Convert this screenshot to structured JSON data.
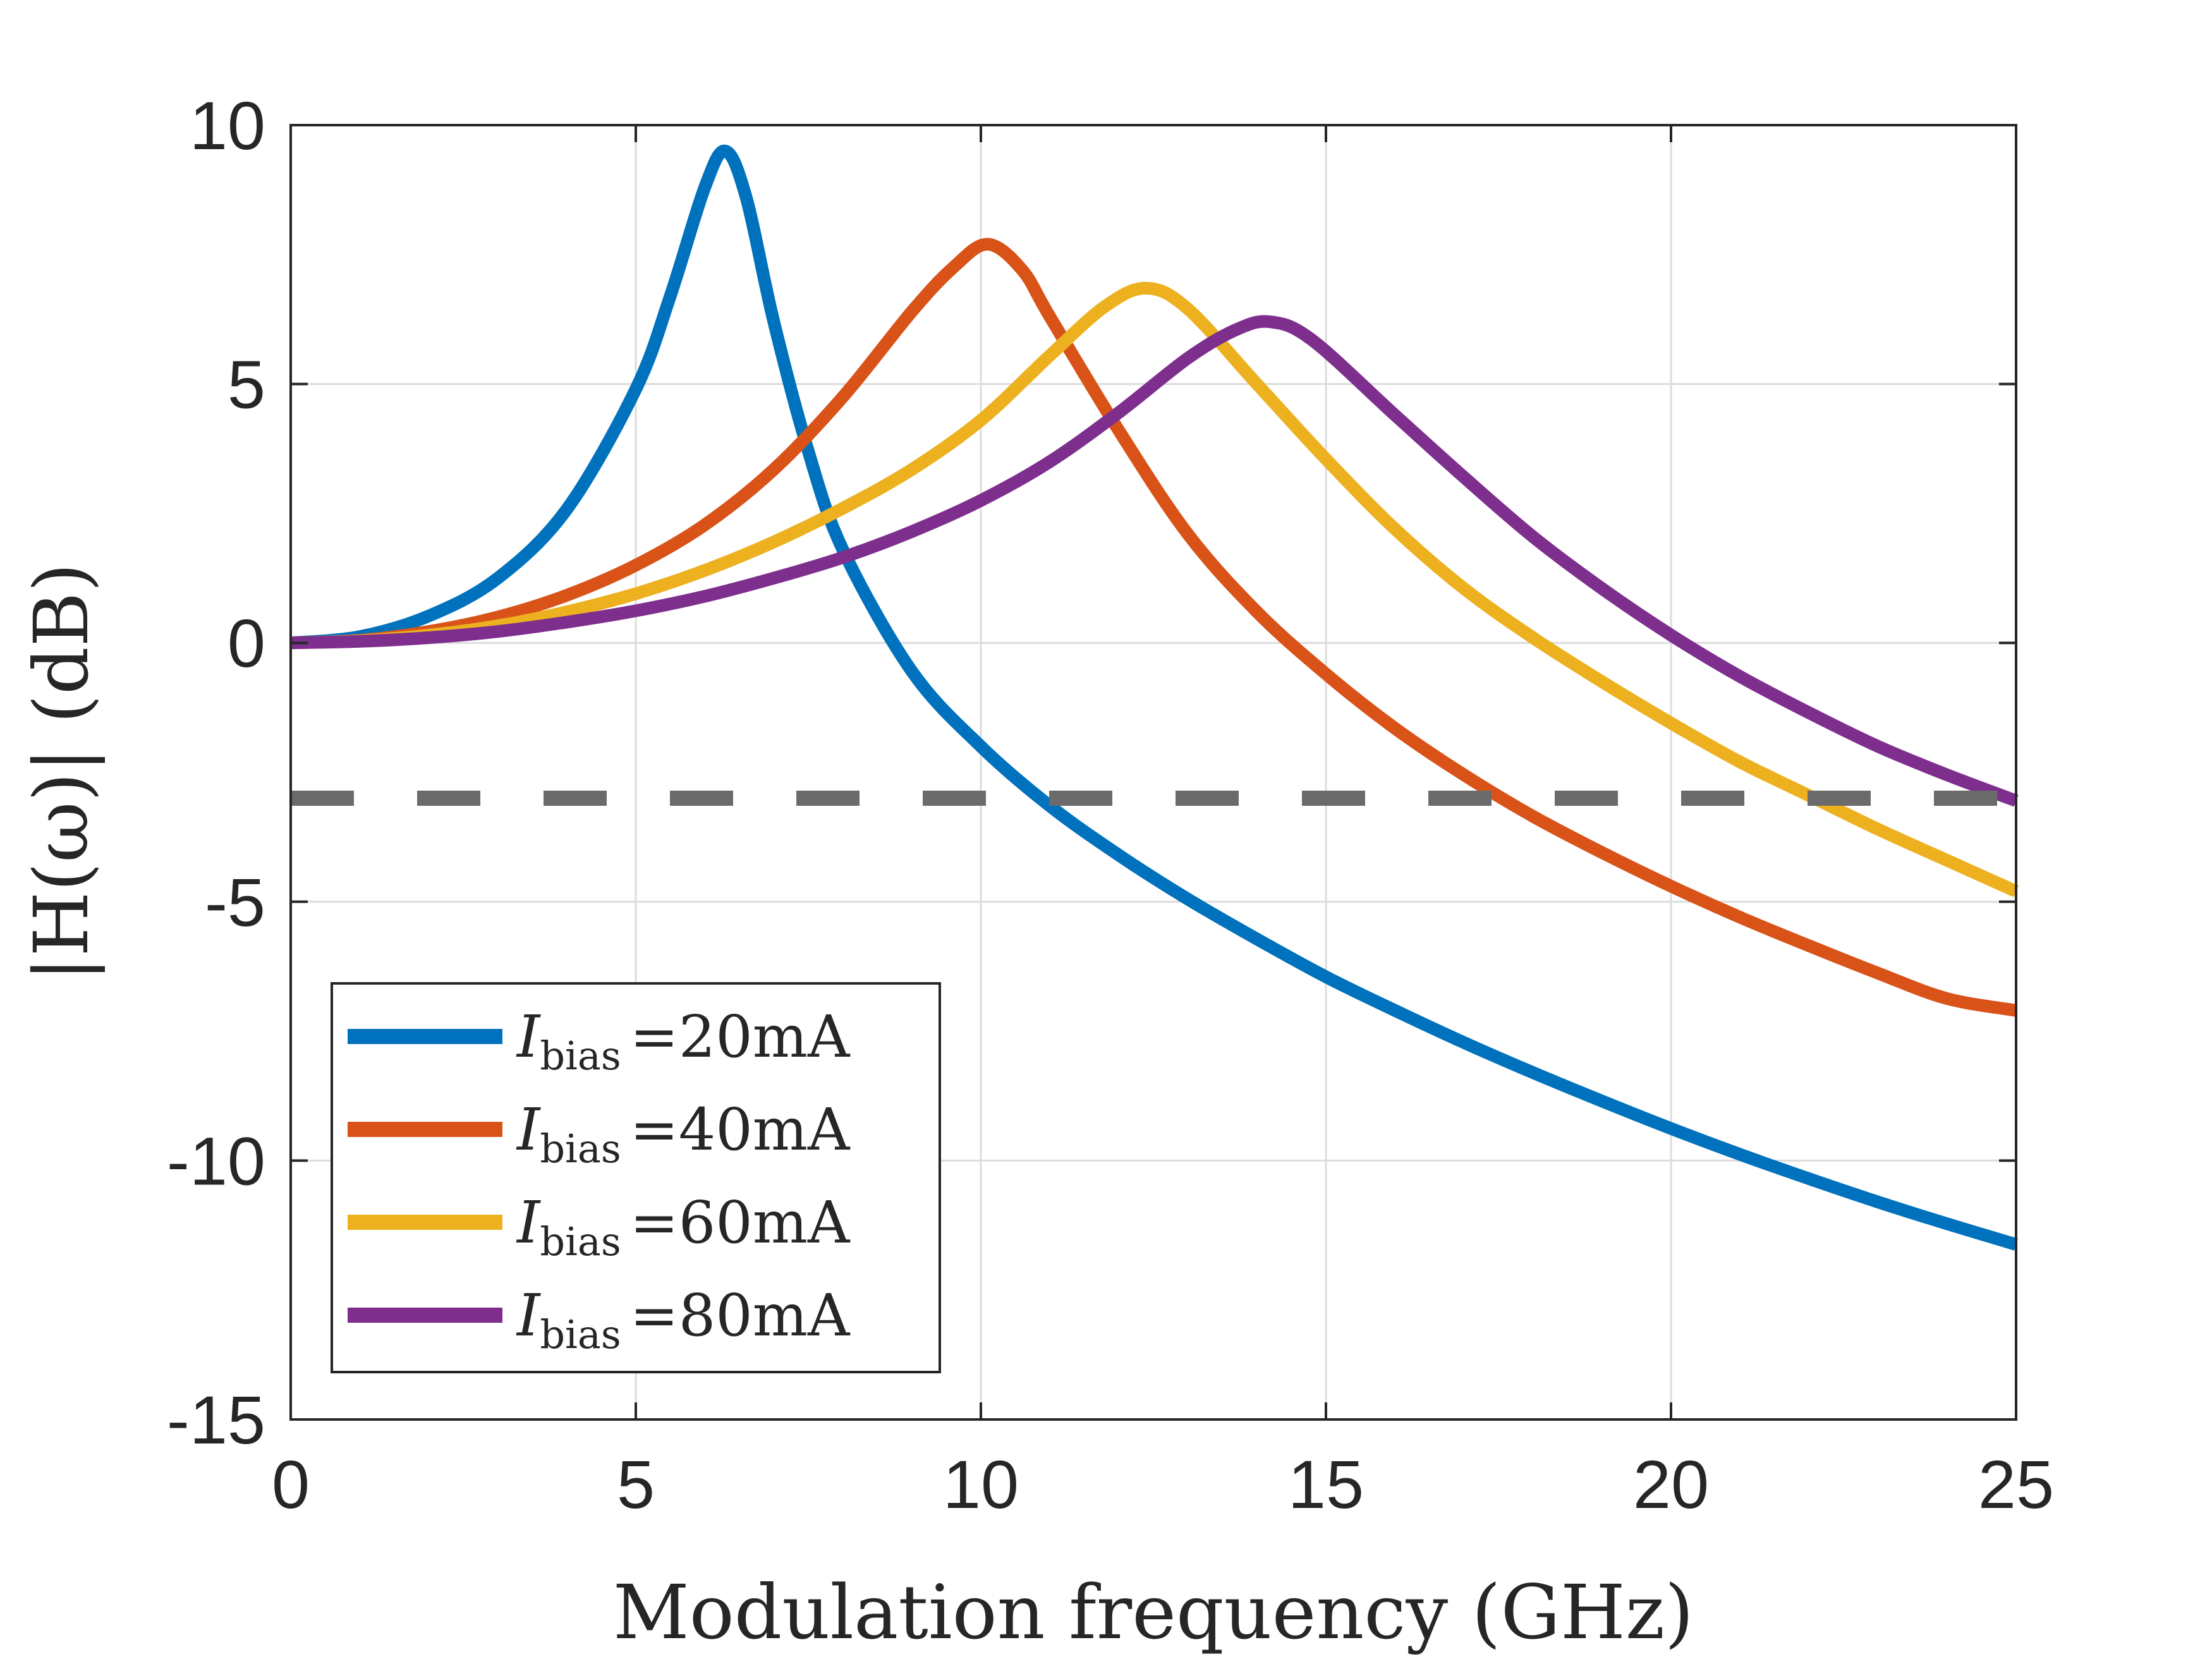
{
  "chart_data": {
    "type": "line",
    "title": "",
    "xlabel": "Modulation frequency (GHz)",
    "ylabel": "|H(ω)| (dB)",
    "xlim": [
      0,
      25
    ],
    "ylim": [
      -15,
      10
    ],
    "xticks": [
      0,
      5,
      10,
      15,
      20,
      25
    ],
    "yticks": [
      -15,
      -10,
      -5,
      0,
      5,
      10
    ],
    "xtick_labels": [
      "0",
      "5",
      "10",
      "15",
      "20",
      "25"
    ],
    "ytick_labels": [
      "-15",
      "-10",
      "-5",
      "0",
      "5",
      "10"
    ],
    "grid": true,
    "legend_position": "bottom-left",
    "reference_line": {
      "y": -3,
      "style": "dashed",
      "color": "#6b6b6b"
    },
    "series": [
      {
        "name": "I_bias =20mA",
        "legend_symbol": "I",
        "legend_subscript": "bias",
        "legend_value": "=20mA",
        "color": "#0072BD",
        "peak_frequency": 6.3,
        "peak_value": 9.5,
        "x": [
          0,
          1,
          2,
          3,
          4,
          5,
          5.5,
          6.0,
          6.3,
          6.6,
          7.0,
          7.5,
          8,
          9,
          10,
          11,
          12,
          13,
          14,
          15,
          16,
          17,
          18,
          19,
          20,
          21,
          22,
          23,
          24,
          25
        ],
        "values": [
          0,
          0.12,
          0.52,
          1.25,
          2.58,
          4.9,
          6.7,
          8.8,
          9.5,
          8.6,
          6.2,
          3.7,
          1.8,
          -0.55,
          -2.0,
          -3.15,
          -4.1,
          -4.95,
          -5.72,
          -6.45,
          -7.1,
          -7.72,
          -8.3,
          -8.85,
          -9.38,
          -9.88,
          -10.35,
          -10.8,
          -11.22,
          -11.62
        ]
      },
      {
        "name": "I_bias =40mA",
        "legend_symbol": "I",
        "legend_subscript": "bias",
        "legend_value": "=40mA",
        "color": "#D95319",
        "peak_frequency": 10.1,
        "peak_value": 7.7,
        "x": [
          0,
          1,
          2,
          3,
          4,
          5,
          6,
          7,
          8,
          9,
          9.6,
          10.1,
          10.6,
          11,
          12,
          13,
          14,
          15,
          16,
          17,
          18,
          19,
          20,
          21,
          22,
          23,
          24,
          25
        ],
        "values": [
          0,
          0.05,
          0.22,
          0.5,
          0.92,
          1.5,
          2.28,
          3.35,
          4.75,
          6.4,
          7.25,
          7.7,
          7.2,
          6.3,
          4.1,
          2.1,
          0.6,
          -0.6,
          -1.65,
          -2.55,
          -3.35,
          -4.05,
          -4.7,
          -5.3,
          -5.85,
          -6.38,
          -6.87,
          -7.1
        ]
      },
      {
        "name": "I_bias =60mA",
        "legend_symbol": "I",
        "legend_subscript": "bias",
        "legend_value": "=60mA",
        "color": "#EDB120",
        "peak_frequency": 12.4,
        "peak_value": 6.85,
        "x": [
          0,
          1,
          2,
          3,
          4,
          5,
          6,
          7,
          8,
          9,
          10,
          11,
          11.8,
          12.4,
          13,
          14,
          15,
          16,
          17,
          18,
          19,
          20,
          21,
          22,
          23,
          24,
          25
        ],
        "values": [
          0,
          0.04,
          0.15,
          0.33,
          0.6,
          0.95,
          1.4,
          1.95,
          2.6,
          3.35,
          4.3,
          5.55,
          6.5,
          6.85,
          6.45,
          5.0,
          3.55,
          2.2,
          1.05,
          0.1,
          -0.75,
          -1.55,
          -2.3,
          -2.95,
          -3.6,
          -4.2,
          -4.8
        ]
      },
      {
        "name": "I_bias =80mA",
        "legend_symbol": "I",
        "legend_subscript": "bias",
        "legend_value": "=80mA",
        "color": "#7E2F8E",
        "peak_frequency": 14.2,
        "peak_value": 6.2,
        "x": [
          0,
          1,
          2,
          3,
          4,
          5,
          6,
          7,
          8,
          9,
          10,
          11,
          12,
          13,
          13.7,
          14.2,
          14.8,
          16,
          17,
          18,
          19,
          20,
          21,
          22,
          23,
          24,
          25
        ],
        "values": [
          0,
          0.03,
          0.1,
          0.22,
          0.4,
          0.62,
          0.9,
          1.25,
          1.65,
          2.15,
          2.75,
          3.5,
          4.45,
          5.5,
          6.05,
          6.2,
          5.85,
          4.4,
          3.2,
          2.05,
          1.05,
          0.15,
          -0.65,
          -1.35,
          -2.0,
          -2.55,
          -3.05
        ]
      }
    ]
  }
}
